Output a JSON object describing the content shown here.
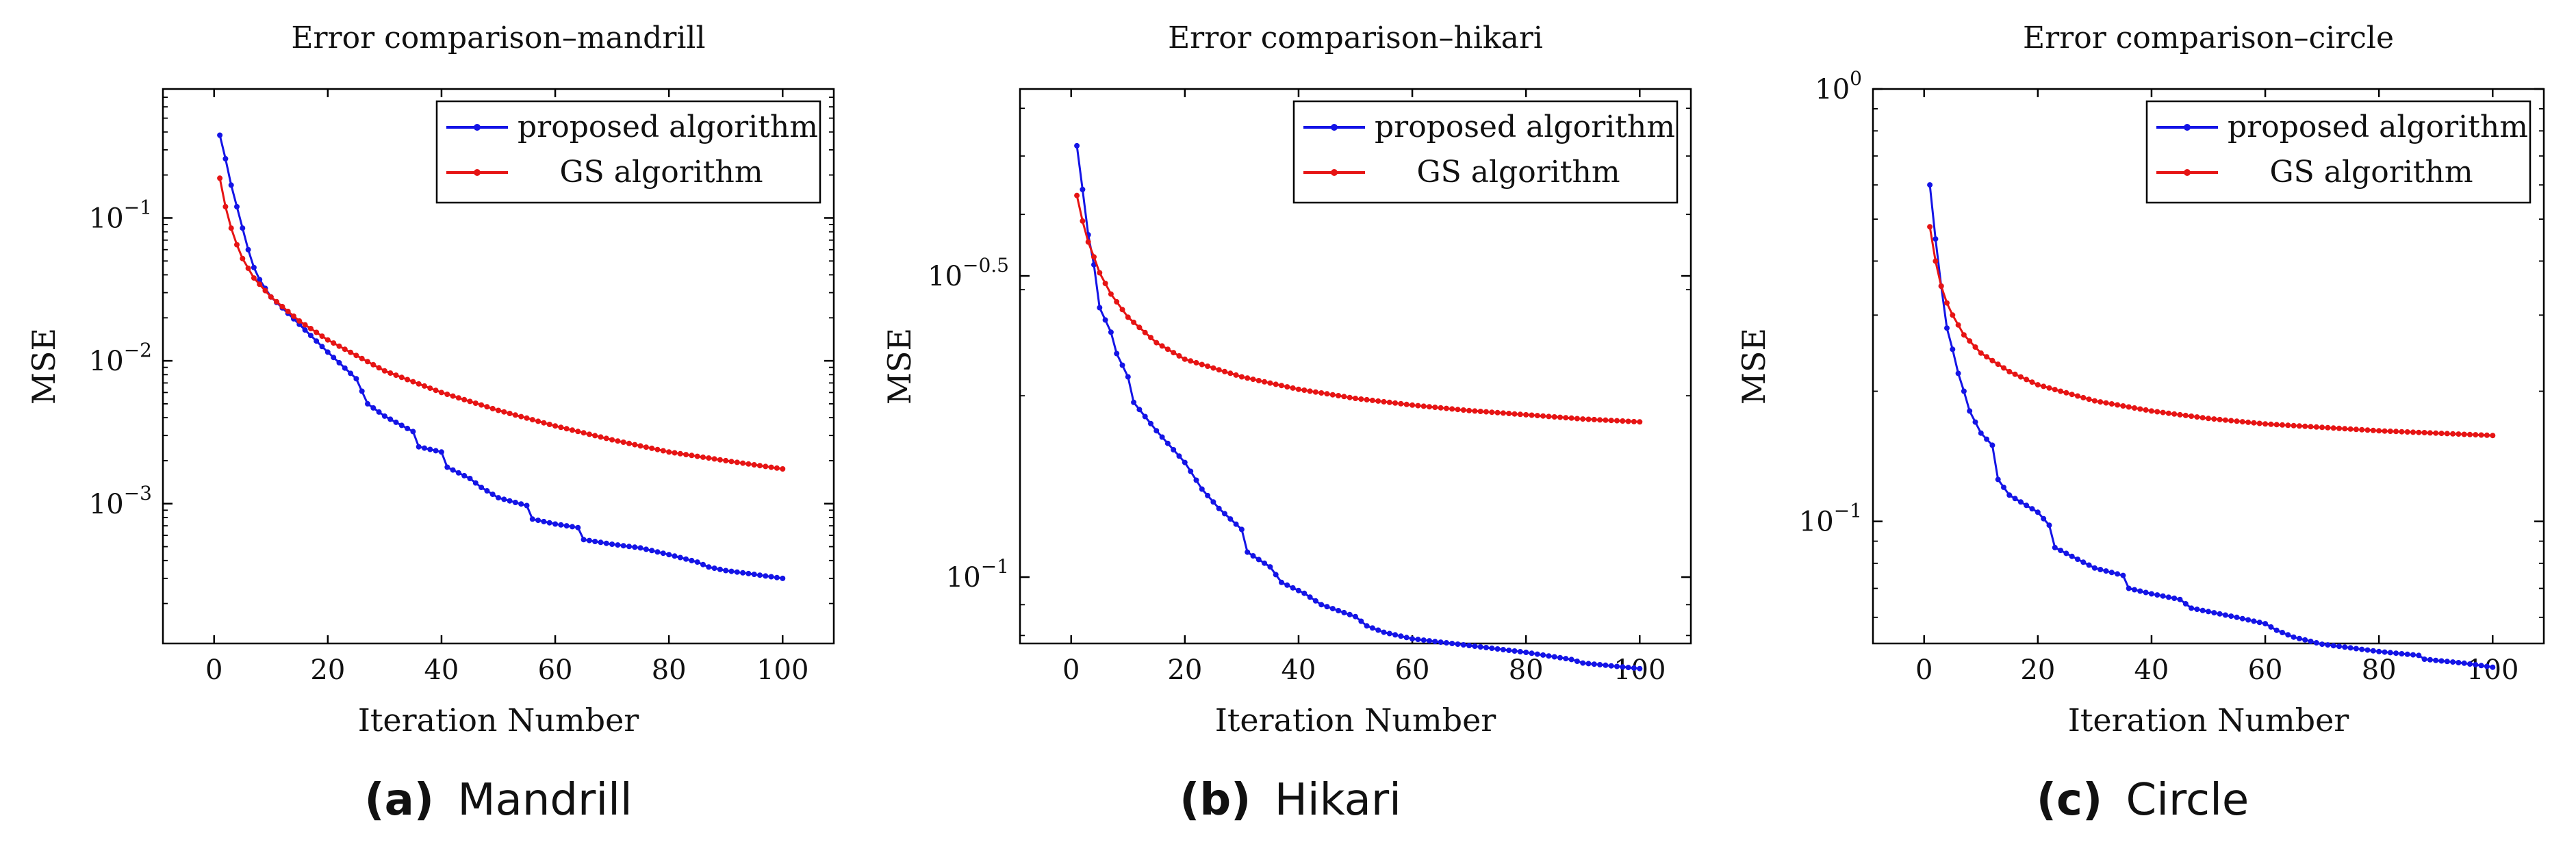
{
  "figure_captions": [
    {
      "letter": "(a)",
      "name": "Mandrill"
    },
    {
      "letter": "(b)",
      "name": "Hikari"
    },
    {
      "letter": "(c)",
      "name": "Circle"
    }
  ],
  "colors": {
    "proposed": "#1414e6",
    "gs": "#e61414"
  },
  "chart_data": [
    {
      "type": "line",
      "title": "Error comparison–mandrill",
      "xlabel": "Iteration Number",
      "ylabel": "MSE",
      "yscale": "log",
      "xlim": [
        -9,
        109
      ],
      "ylim": [
        0.000105,
        0.8
      ],
      "x_ticks": [
        0,
        20,
        40,
        60,
        80,
        100
      ],
      "y_ticks": [
        {
          "value": 0.1,
          "base": "10",
          "exp": "−1"
        },
        {
          "value": 0.01,
          "base": "10",
          "exp": "−2"
        },
        {
          "value": 0.001,
          "base": "10",
          "exp": "−3"
        }
      ],
      "series": [
        {
          "name": "proposed algorithm",
          "color": "#1414e6",
          "knots": [
            [
              1,
              0.38
            ],
            [
              2,
              0.26
            ],
            [
              3,
              0.17
            ],
            [
              4,
              0.12
            ],
            [
              5,
              0.085
            ],
            [
              6,
              0.06
            ],
            [
              7,
              0.045
            ],
            [
              8,
              0.037
            ],
            [
              10,
              0.028
            ],
            [
              15,
              0.018
            ],
            [
              20,
              0.0115
            ],
            [
              25,
              0.0075
            ],
            [
              27,
              0.005
            ],
            [
              30,
              0.0041
            ],
            [
              35,
              0.0032
            ],
            [
              36,
              0.0025
            ],
            [
              40,
              0.0023
            ],
            [
              41,
              0.0018
            ],
            [
              45,
              0.0015
            ],
            [
              47,
              0.0013
            ],
            [
              50,
              0.0011
            ],
            [
              55,
              0.00097
            ],
            [
              56,
              0.00078
            ],
            [
              60,
              0.00072
            ],
            [
              64,
              0.00068
            ],
            [
              65,
              0.00056
            ],
            [
              70,
              0.00052
            ],
            [
              75,
              0.00049
            ],
            [
              80,
              0.00044
            ],
            [
              85,
              0.00039
            ],
            [
              87,
              0.00036
            ],
            [
              90,
              0.00034
            ],
            [
              95,
              0.00032
            ],
            [
              100,
              0.0003
            ]
          ],
          "steps": [
            [
              27,
              0.0051
            ],
            [
              36,
              0.0026
            ],
            [
              41,
              0.00185
            ],
            [
              47,
              0.0013
            ],
            [
              56,
              0.00078
            ],
            [
              65,
              0.00058
            ],
            [
              87,
              0.00036
            ]
          ]
        },
        {
          "name": "GS algorithm",
          "color": "#e61414",
          "knots": [
            [
              1,
              0.19
            ],
            [
              2,
              0.12
            ],
            [
              3,
              0.085
            ],
            [
              4,
              0.065
            ],
            [
              5,
              0.052
            ],
            [
              7,
              0.038
            ],
            [
              10,
              0.028
            ],
            [
              15,
              0.019
            ],
            [
              20,
              0.014
            ],
            [
              30,
              0.0085
            ],
            [
              40,
              0.006
            ],
            [
              50,
              0.0045
            ],
            [
              60,
              0.0035
            ],
            [
              70,
              0.0028
            ],
            [
              80,
              0.0023
            ],
            [
              90,
              0.002
            ],
            [
              100,
              0.00175
            ]
          ],
          "steps": []
        }
      ]
    },
    {
      "type": "line",
      "title": "Error comparison–hikari",
      "xlabel": "Iteration Number",
      "ylabel": "MSE",
      "yscale": "log",
      "xlim": [
        -9,
        109
      ],
      "ylim": [
        0.0776,
        0.646
      ],
      "x_ticks": [
        0,
        20,
        40,
        60,
        80,
        100
      ],
      "y_ticks": [
        {
          "value": 0.3162,
          "base": "10",
          "exp": "−0.5"
        },
        {
          "value": 0.1,
          "base": "10",
          "exp": "−1"
        }
      ],
      "series": [
        {
          "name": "proposed algorithm",
          "color": "#1414e6",
          "knots": [
            [
              1,
              0.52
            ],
            [
              2,
              0.44
            ],
            [
              3,
              0.37
            ],
            [
              4,
              0.33
            ],
            [
              5,
              0.28
            ],
            [
              7,
              0.255
            ],
            [
              8,
              0.235
            ],
            [
              10,
              0.215
            ],
            [
              11,
              0.195
            ],
            [
              15,
              0.175
            ],
            [
              20,
              0.155
            ],
            [
              23,
              0.14
            ],
            [
              26,
              0.13
            ],
            [
              30,
              0.12
            ],
            [
              31,
              0.11
            ],
            [
              35,
              0.104
            ],
            [
              37,
              0.098
            ],
            [
              41,
              0.094
            ],
            [
              44,
              0.09
            ],
            [
              50,
              0.086
            ],
            [
              52,
              0.083
            ],
            [
              55,
              0.081
            ],
            [
              60,
              0.079
            ],
            [
              70,
              0.077
            ],
            [
              80,
              0.075
            ],
            [
              88,
              0.073
            ],
            [
              90,
              0.072
            ],
            [
              100,
              0.0705
            ]
          ],
          "steps": [
            [
              11,
              0.2
            ],
            [
              23,
              0.142
            ],
            [
              31,
              0.112
            ],
            [
              37,
              0.099
            ],
            [
              44,
              0.091
            ],
            [
              52,
              0.084
            ],
            [
              88,
              0.073
            ]
          ]
        },
        {
          "name": "GS algorithm",
          "color": "#e61414",
          "knots": [
            [
              1,
              0.43
            ],
            [
              2,
              0.39
            ],
            [
              3,
              0.36
            ],
            [
              4,
              0.34
            ],
            [
              5,
              0.32
            ],
            [
              7,
              0.295
            ],
            [
              10,
              0.27
            ],
            [
              15,
              0.245
            ],
            [
              20,
              0.23
            ],
            [
              30,
              0.215
            ],
            [
              40,
              0.205
            ],
            [
              50,
              0.198
            ],
            [
              60,
              0.193
            ],
            [
              70,
              0.189
            ],
            [
              80,
              0.186
            ],
            [
              90,
              0.183
            ],
            [
              100,
              0.181
            ]
          ],
          "steps": []
        }
      ]
    },
    {
      "type": "line",
      "title": "Error comparison–circle",
      "xlabel": "Iteration Number",
      "ylabel": "MSE",
      "yscale": "log",
      "xlim": [
        -9,
        109
      ],
      "ylim": [
        0.0522,
        1.0
      ],
      "x_ticks": [
        0,
        20,
        40,
        60,
        80,
        100
      ],
      "y_ticks": [
        {
          "value": 1.0,
          "base": "10",
          "exp": "0"
        },
        {
          "value": 0.1,
          "base": "10",
          "exp": "−1"
        }
      ],
      "series": [
        {
          "name": "proposed algorithm",
          "color": "#1414e6",
          "knots": [
            [
              1,
              0.6
            ],
            [
              2,
              0.45
            ],
            [
              3,
              0.35
            ],
            [
              4,
              0.28
            ],
            [
              5,
              0.25
            ],
            [
              6,
              0.22
            ],
            [
              7,
              0.2
            ],
            [
              8,
              0.18
            ],
            [
              10,
              0.16
            ],
            [
              12,
              0.15
            ],
            [
              13,
              0.125
            ],
            [
              15,
              0.115
            ],
            [
              20,
              0.105
            ],
            [
              22,
              0.098
            ],
            [
              23,
              0.087
            ],
            [
              30,
              0.078
            ],
            [
              35,
              0.075
            ],
            [
              36,
              0.07
            ],
            [
              40,
              0.068
            ],
            [
              45,
              0.066
            ],
            [
              47,
              0.063
            ],
            [
              55,
              0.06
            ],
            [
              60,
              0.058
            ],
            [
              62,
              0.056
            ],
            [
              65,
              0.054
            ],
            [
              70,
              0.052
            ],
            [
              75,
              0.051
            ],
            [
              80,
              0.05
            ],
            [
              87,
              0.049
            ],
            [
              88,
              0.048
            ],
            [
              95,
              0.047
            ],
            [
              100,
              0.046
            ]
          ],
          "steps": [
            [
              13,
              0.127
            ],
            [
              23,
              0.088
            ],
            [
              36,
              0.071
            ],
            [
              47,
              0.0635
            ],
            [
              62,
              0.056
            ],
            [
              88,
              0.048
            ]
          ]
        },
        {
          "name": "GS algorithm",
          "color": "#e61414",
          "knots": [
            [
              1,
              0.48
            ],
            [
              2,
              0.4
            ],
            [
              3,
              0.35
            ],
            [
              4,
              0.32
            ],
            [
              5,
              0.3
            ],
            [
              7,
              0.27
            ],
            [
              10,
              0.245
            ],
            [
              15,
              0.222
            ],
            [
              20,
              0.207
            ],
            [
              30,
              0.19
            ],
            [
              40,
              0.18
            ],
            [
              50,
              0.173
            ],
            [
              60,
              0.168
            ],
            [
              70,
              0.165
            ],
            [
              80,
              0.162
            ],
            [
              90,
              0.16
            ],
            [
              100,
              0.158
            ]
          ],
          "steps": []
        }
      ]
    }
  ]
}
